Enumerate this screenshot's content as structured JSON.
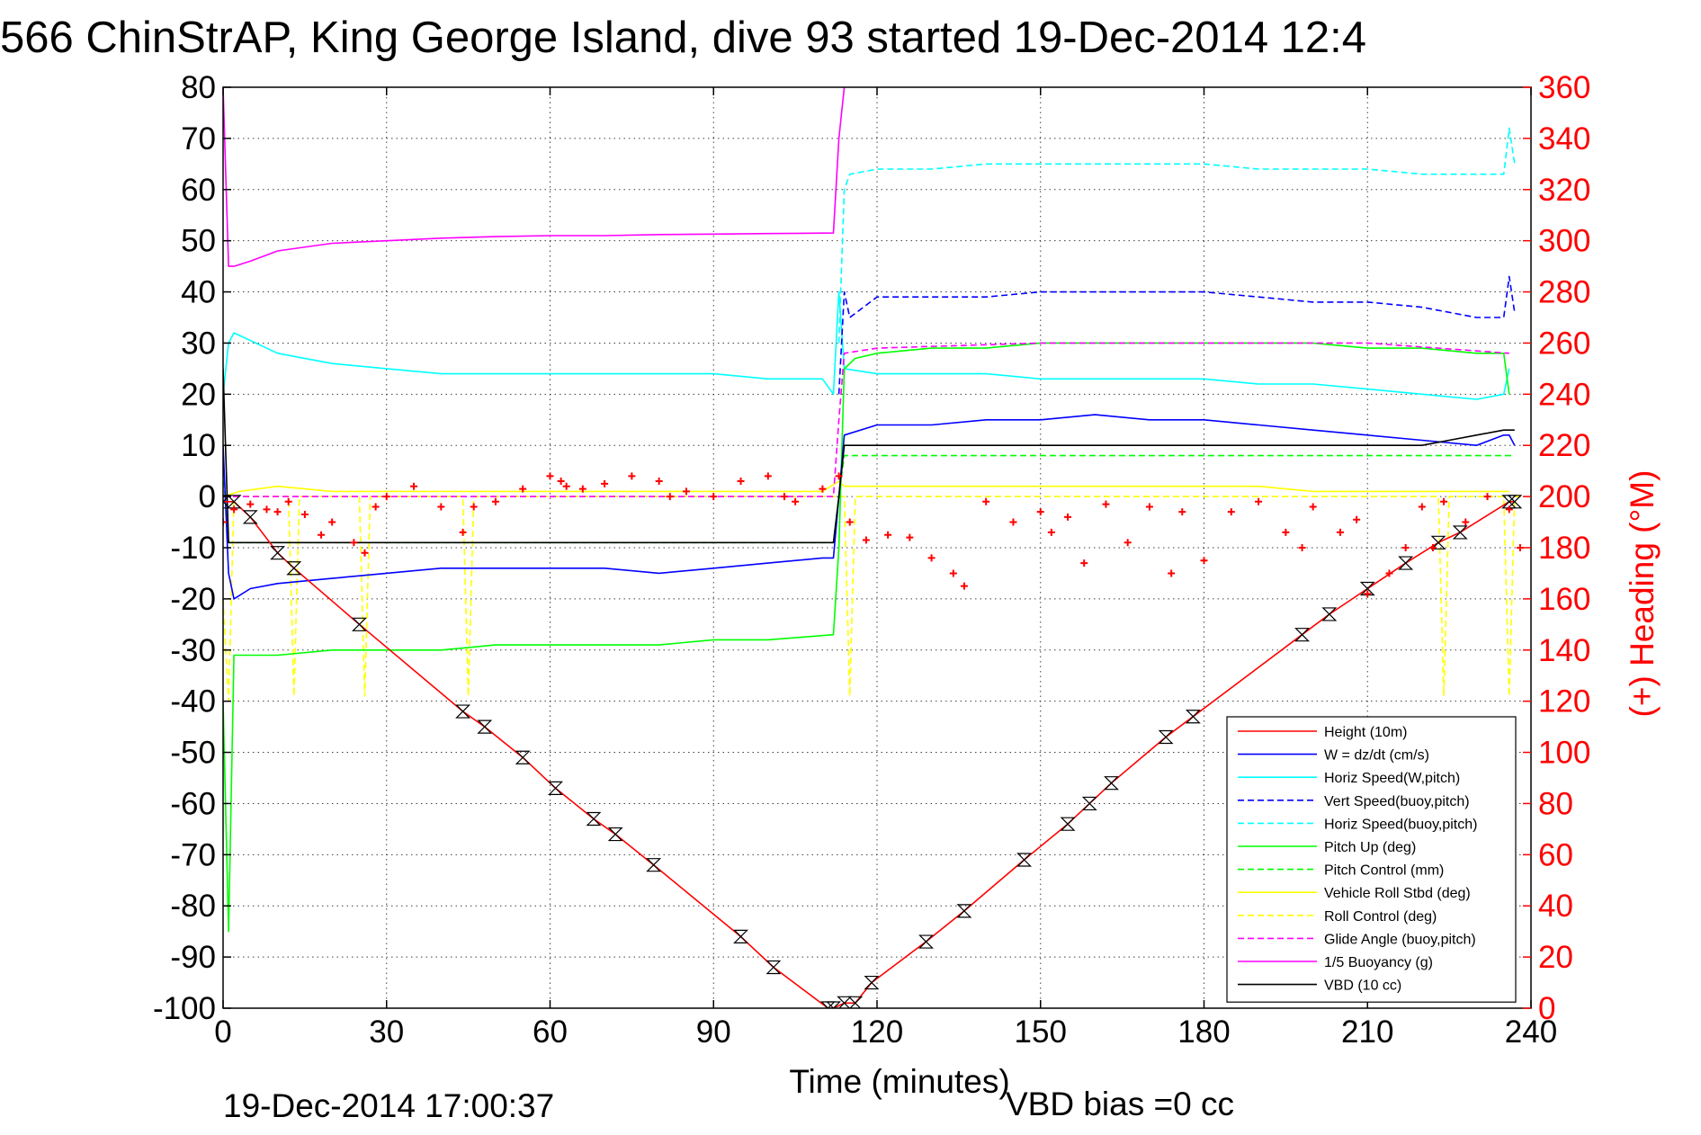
{
  "chart_data": {
    "type": "line",
    "title": "566 ChinStrAP, King George Island, dive 93 started 19-Dec-2014 12:4",
    "xlabel": "Time (minutes)",
    "ylabel_right": "(+) Heading (°M)",
    "xlim": [
      0,
      240
    ],
    "ylim_left": [
      -100,
      80
    ],
    "ylim_right": [
      0,
      360
    ],
    "x_ticks": [
      0,
      30,
      60,
      90,
      120,
      150,
      180,
      210,
      240
    ],
    "y_ticks_left": [
      80,
      70,
      60,
      50,
      40,
      30,
      20,
      10,
      0,
      -10,
      -20,
      -30,
      -40,
      -50,
      -60,
      -70,
      -80,
      -90,
      -100
    ],
    "y_ticks_right": [
      360,
      340,
      320,
      300,
      280,
      260,
      240,
      220,
      200,
      180,
      160,
      140,
      120,
      100,
      80,
      60,
      40,
      20,
      0
    ],
    "grid": true,
    "legend_position": "bottom-right",
    "footer_left": "19-Dec-2014 17:00:37",
    "footer_right": "VBD bias =0 cc",
    "series": [
      {
        "name": "Height (10m)",
        "color": "#ff0000",
        "style": "solid",
        "x": [
          0,
          2,
          5,
          10,
          13,
          25,
          44,
          48,
          55,
          61,
          68,
          72,
          79,
          95,
          101,
          111,
          112,
          114,
          116,
          119,
          129,
          136,
          147,
          155,
          159,
          163,
          173,
          178,
          198,
          203,
          210,
          217,
          223,
          227,
          236,
          237
        ],
        "y": [
          -1,
          -1,
          -4,
          -11,
          -14,
          -25,
          -42,
          -45,
          -51,
          -57,
          -63,
          -66,
          -72,
          -86,
          -92,
          -100,
          -100,
          -99,
          -99,
          -95,
          -87,
          -81,
          -71,
          -64,
          -60,
          -56,
          -47,
          -43,
          -27,
          -23,
          -18,
          -13,
          -9,
          -7,
          -1,
          -1
        ]
      },
      {
        "name": "W = dz/dt (cm/s)",
        "color": "#0000ff",
        "style": "solid",
        "x": [
          0,
          1,
          2,
          5,
          10,
          20,
          30,
          40,
          50,
          60,
          70,
          80,
          90,
          100,
          110,
          112,
          113,
          114,
          120,
          130,
          140,
          150,
          160,
          170,
          180,
          190,
          200,
          210,
          220,
          230,
          235,
          236,
          237
        ],
        "y": [
          10,
          -15,
          -20,
          -18,
          -17,
          -16,
          -15,
          -14,
          -14,
          -14,
          -14,
          -15,
          -14,
          -13,
          -12,
          -12,
          0,
          12,
          14,
          14,
          15,
          15,
          16,
          15,
          15,
          14,
          13,
          12,
          11,
          10,
          12,
          12,
          10
        ]
      },
      {
        "name": "Horiz Speed(W,pitch)",
        "color": "#00ffff",
        "style": "solid",
        "x": [
          0,
          1,
          2,
          10,
          20,
          30,
          40,
          50,
          60,
          70,
          80,
          90,
          100,
          110,
          112,
          113,
          114,
          120,
          130,
          140,
          150,
          160,
          170,
          180,
          190,
          200,
          210,
          220,
          230,
          235,
          236
        ],
        "y": [
          20,
          30,
          32,
          28,
          26,
          25,
          24,
          24,
          24,
          24,
          24,
          24,
          23,
          23,
          20,
          40,
          25,
          24,
          24,
          24,
          23,
          23,
          23,
          23,
          22,
          22,
          21,
          20,
          19,
          20,
          25
        ]
      },
      {
        "name": "Vert Speed(buoy,pitch)",
        "color": "#0000ff",
        "style": "dashed",
        "x": [
          113,
          114,
          115,
          120,
          130,
          140,
          150,
          160,
          170,
          180,
          190,
          200,
          210,
          220,
          230,
          235,
          236,
          237
        ],
        "y": [
          20,
          40,
          35,
          39,
          39,
          39,
          40,
          40,
          40,
          40,
          39,
          38,
          38,
          37,
          35,
          35,
          43,
          36
        ]
      },
      {
        "name": "Horiz Speed(buoy,pitch)",
        "color": "#00ffff",
        "style": "dashed",
        "x": [
          113,
          114,
          115,
          120,
          130,
          140,
          150,
          160,
          170,
          180,
          190,
          200,
          210,
          220,
          230,
          235,
          236,
          237
        ],
        "y": [
          30,
          60,
          63,
          64,
          64,
          65,
          65,
          65,
          65,
          65,
          64,
          64,
          64,
          63,
          63,
          63,
          72,
          65
        ]
      },
      {
        "name": "Pitch Up (deg)",
        "color": "#00ff00",
        "style": "solid",
        "x": [
          0,
          1,
          2,
          5,
          10,
          20,
          30,
          40,
          50,
          60,
          70,
          80,
          90,
          100,
          112,
          113,
          114,
          116,
          120,
          130,
          140,
          150,
          160,
          170,
          180,
          190,
          200,
          210,
          220,
          230,
          235,
          236
        ],
        "y": [
          -40,
          -85,
          -31,
          -31,
          -31,
          -30,
          -30,
          -30,
          -29,
          -29,
          -29,
          -29,
          -28,
          -28,
          -27,
          -10,
          25,
          27,
          28,
          29,
          29,
          30,
          30,
          30,
          30,
          30,
          30,
          29,
          29,
          28,
          28,
          20
        ]
      },
      {
        "name": "Pitch Control (mm)",
        "color": "#00ff00",
        "style": "dashed",
        "x": [
          0,
          1,
          2,
          10,
          30,
          60,
          90,
          112,
          113,
          114,
          120,
          150,
          180,
          210,
          236,
          237
        ],
        "y": [
          5,
          -9,
          -9,
          -9,
          -9,
          -9,
          -9,
          -9,
          0,
          8,
          8,
          8,
          8,
          8,
          8,
          8
        ]
      },
      {
        "name": "Vehicle Roll Stbd (deg)",
        "color": "#ffff00",
        "style": "solid",
        "x": [
          0,
          3,
          10,
          20,
          30,
          40,
          50,
          60,
          70,
          80,
          90,
          100,
          110,
          113,
          114,
          120,
          130,
          140,
          150,
          160,
          170,
          180,
          190,
          200,
          210,
          220,
          230,
          236
        ],
        "y": [
          0,
          1,
          2,
          1,
          1,
          1,
          1,
          1,
          1,
          1,
          1,
          1,
          1,
          3,
          2,
          2,
          2,
          2,
          2,
          2,
          2,
          2,
          2,
          1,
          1,
          1,
          1,
          1
        ]
      },
      {
        "name": "Roll Control (deg)",
        "color": "#ffff00",
        "style": "dashed",
        "x": [
          0,
          1,
          2,
          3,
          10,
          12,
          13,
          14,
          25,
          26,
          27,
          44,
          45,
          46,
          110,
          113,
          114,
          115,
          116,
          117,
          130,
          180,
          223,
          224,
          225,
          235,
          236,
          237,
          238
        ],
        "y": [
          -20,
          -40,
          0,
          0,
          0,
          0,
          -39,
          0,
          0,
          -39,
          0,
          0,
          -39,
          0,
          0,
          0,
          0,
          -39,
          0,
          0,
          0,
          0,
          0,
          -39,
          0,
          0,
          -39,
          0,
          0
        ]
      },
      {
        "name": "Glide Angle (buoy,pitch)",
        "color": "#ff00ff",
        "style": "dashed",
        "x": [
          0,
          2,
          30,
          60,
          90,
          112,
          113,
          114,
          120,
          150,
          180,
          210,
          236
        ],
        "y": [
          0,
          0,
          0,
          0,
          0,
          0,
          15,
          28,
          29,
          30,
          30,
          30,
          28
        ]
      },
      {
        "name": "1/5 Buoyancy (g)",
        "color": "#ff00ff",
        "style": "solid",
        "x": [
          0,
          1,
          2,
          5,
          10,
          20,
          30,
          40,
          50,
          60,
          70,
          80,
          90,
          100,
          112,
          113,
          114
        ],
        "y": [
          80,
          45,
          45,
          46,
          48,
          49.5,
          50,
          50.5,
          50.8,
          51,
          51,
          51.2,
          51.3,
          51.4,
          51.5,
          70,
          80
        ]
      },
      {
        "name": "VBD (10 cc)",
        "color": "#000000",
        "style": "solid",
        "x": [
          0,
          1,
          2,
          10,
          30,
          60,
          90,
          112,
          113,
          114,
          120,
          150,
          180,
          210,
          220,
          225,
          230,
          235,
          237
        ],
        "y": [
          25,
          -9,
          -9,
          -9,
          -9,
          -9,
          -9,
          -9,
          0,
          10,
          10,
          10,
          10,
          10,
          10,
          11,
          12,
          13,
          13
        ]
      },
      {
        "name": "Heading",
        "axis": "right",
        "color": "#ff0000",
        "style": "markers",
        "x": [
          0,
          2,
          5,
          8,
          10,
          12,
          15,
          18,
          20,
          24,
          26,
          28,
          30,
          35,
          40,
          44,
          46,
          50,
          55,
          60,
          62,
          63,
          66,
          70,
          75,
          80,
          82,
          85,
          90,
          95,
          100,
          103,
          105,
          110,
          113,
          115,
          118,
          122,
          126,
          130,
          134,
          136,
          140,
          145,
          150,
          152,
          155,
          158,
          162,
          166,
          170,
          174,
          176,
          180,
          185,
          190,
          195,
          198,
          200,
          205,
          208,
          210,
          214,
          217,
          220,
          222,
          224,
          228,
          232,
          236,
          238
        ],
        "y": [
          190,
          195,
          197,
          195,
          194,
          198,
          193,
          185,
          190,
          182,
          178,
          196,
          200,
          204,
          196,
          186,
          196,
          198,
          203,
          208,
          206,
          204,
          203,
          205,
          208,
          206,
          200,
          202,
          200,
          206,
          208,
          200,
          198,
          203,
          208,
          190,
          183,
          185,
          184,
          176,
          170,
          165,
          198,
          190,
          194,
          186,
          192,
          174,
          197,
          182,
          196,
          170,
          194,
          175,
          194,
          198,
          186,
          180,
          196,
          186,
          191,
          162,
          170,
          180,
          196,
          180,
          198,
          190,
          200,
          195,
          180
        ]
      }
    ]
  }
}
